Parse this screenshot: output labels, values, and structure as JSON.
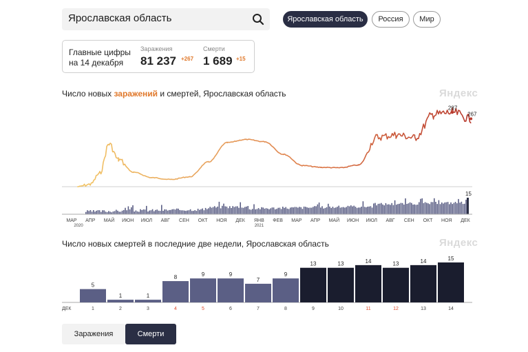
{
  "search": {
    "value": "Ярославская область"
  },
  "region_tabs": [
    {
      "label": "Ярославская область",
      "active": true
    },
    {
      "label": "Россия",
      "active": false
    },
    {
      "label": "Мир",
      "active": false
    }
  ],
  "summary": {
    "label_line1": "Главные цифры",
    "label_line2": "на 14 декабря",
    "infections": {
      "caption": "Заражения",
      "value": "81 237",
      "increment": "+267"
    },
    "deaths": {
      "caption": "Смерти",
      "value": "1 689",
      "increment": "+15"
    }
  },
  "chart1": {
    "title_pre": "Число новых ",
    "title_hl": "заражений",
    "title_post": " и смертей, Ярославская область",
    "watermark": "Яндекс"
  },
  "chart2": {
    "title": "Число новых смертей в последние две недели, Ярославская область",
    "watermark": "Яндекс"
  },
  "buttons": {
    "infections": "Заражения",
    "deaths": "Смерти"
  },
  "colors": {
    "accent": "#e0782a",
    "dark": "#2a2e44",
    "bar_light": "#5b5f85",
    "bar_dark": "#1a1d2e",
    "weekend": "#e04a2a"
  },
  "chart_data": [
    {
      "type": "line",
      "title": "Число новых заражений и смертей, Ярославская область",
      "months": [
        "МАР",
        "АПР",
        "МАЙ",
        "ИЮН",
        "ИЮЛ",
        "АВГ",
        "СЕН",
        "ОКТ",
        "НОЯ",
        "ДЕК",
        "ЯНВ",
        "ФЕВ",
        "МАР",
        "АПР",
        "МАЙ",
        "ИЮН",
        "ИЮЛ",
        "АВГ",
        "СЕН",
        "ОКТ",
        "НОЯ",
        "ДЕК"
      ],
      "year_labels": [
        "2020",
        "2021"
      ],
      "series": [
        {
          "kind": "daily_infections",
          "points": [
            [
              "МАР 2020",
              0
            ],
            [
              "АПР 2020",
              5
            ],
            [
              "АПР 2020",
              30
            ],
            [
              "МАЙ 2020",
              95
            ],
            [
              "МАЙ 2020",
              60
            ],
            [
              "ИЮН 2020",
              32
            ],
            [
              "ИЮЛ 2020",
              20
            ],
            [
              "АВГ 2020",
              16
            ],
            [
              "СЕН 2020",
              22
            ],
            [
              "ОКТ 2020",
              55
            ],
            [
              "НОЯ 2020",
              98
            ],
            [
              "ДЕК 2020",
              105
            ],
            [
              "ЯНВ 2021",
              100
            ],
            [
              "ФЕВ 2021",
              72
            ],
            [
              "МАР 2021",
              47
            ],
            [
              "АПР 2021",
              43
            ],
            [
              "МАЙ 2021",
              42
            ],
            [
              "ИЮН 2021",
              48
            ],
            [
              "ИЮЛ 2021",
              110
            ],
            [
              "АВГ 2021",
              115
            ],
            [
              "СЕН 2021",
              109
            ],
            [
              "ОКТ 2021",
              160
            ],
            [
              "НОЯ 2021",
              165
            ],
            [
              "ДЕК 2021",
              151
            ]
          ]
        },
        {
          "kind": "daily_deaths",
          "bar_labels": [
            {
              "label": "15",
              "value": 15
            }
          ]
        }
      ],
      "annotations": [
        {
          "label": "287",
          "value": 287
        },
        {
          "label": "267",
          "value": 267
        }
      ]
    },
    {
      "type": "bar",
      "title": "Число новых смертей в последние две недели, Ярославская область",
      "month_label": "ДЕК",
      "categories": [
        "1",
        "2",
        "3",
        "4",
        "5",
        "6",
        "7",
        "8",
        "9",
        "10",
        "11",
        "12",
        "13",
        "14"
      ],
      "values": [
        5,
        1,
        1,
        8,
        9,
        9,
        7,
        9,
        13,
        13,
        14,
        13,
        14,
        15
      ],
      "weekend_days": [
        "4",
        "5",
        "11",
        "12"
      ],
      "last_week_from": "9",
      "ylim": [
        0,
        15
      ]
    }
  ]
}
